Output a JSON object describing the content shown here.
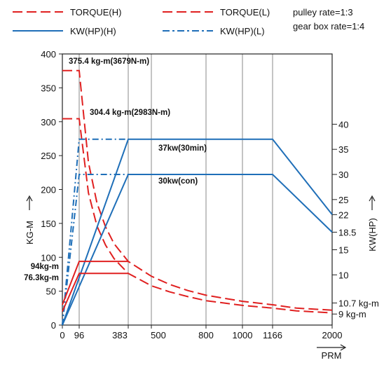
{
  "chart_data": {
    "type": "line",
    "legend": [
      {
        "label": "TORQUE(H)",
        "color": "#e02020",
        "dash": "dashed"
      },
      {
        "label": "TORQUE(L)",
        "color": "#e02020",
        "dash": "dashed"
      },
      {
        "label": "KW(HP)(H)",
        "color": "#1f6fb8",
        "dash": "solid"
      },
      {
        "label": "KW(HP)(L)",
        "color": "#1f6fb8",
        "dash": "dashdot"
      }
    ],
    "notes": [
      "pulley rate=1:3",
      "gear box rate=1:4"
    ],
    "xlabel": "PRM",
    "ylabel_left": "KG-M",
    "ylabel_right": "KW(HP)",
    "x_ticks": [
      "0",
      "96",
      "383",
      "500",
      "800",
      "1000",
      "1166",
      "2000"
    ],
    "x_tick_values": [
      0,
      96,
      383,
      500,
      800,
      1000,
      1166,
      2000
    ],
    "y_left_ticks": [
      0,
      50,
      100,
      150,
      200,
      250,
      300,
      350,
      400
    ],
    "y_left_range": [
      0,
      400
    ],
    "y_right_ticks": [
      {
        "label": "40",
        "v": 40
      },
      {
        "label": "35",
        "v": 35
      },
      {
        "label": "30",
        "v": 30
      },
      {
        "label": "25",
        "v": 25
      },
      {
        "label": "22",
        "v": 22
      },
      {
        "label": "18.5",
        "v": 18.5
      },
      {
        "label": "15",
        "v": 15
      },
      {
        "label": "10",
        "v": 10
      },
      {
        "label": "10.7 kg-m",
        "v": 4.4
      },
      {
        "label": "9 kg-m",
        "v": 2.2
      }
    ],
    "y_right_range": [
      0,
      54
    ],
    "series": [
      {
        "name": "TORQUE(H)",
        "axis": "left",
        "points": [
          [
            0,
            375.4
          ],
          [
            96,
            375.4
          ],
          [
            150,
            240
          ],
          [
            200,
            180
          ],
          [
            250,
            145
          ],
          [
            300,
            120
          ],
          [
            383,
            94
          ],
          [
            500,
            72
          ],
          [
            600,
            60
          ],
          [
            700,
            51
          ],
          [
            800,
            44
          ],
          [
            1000,
            35
          ],
          [
            1166,
            30
          ],
          [
            1500,
            25
          ],
          [
            2000,
            22
          ]
        ]
      },
      {
        "name": "TORQUE(L)",
        "axis": "left",
        "points": [
          [
            0,
            304.4
          ],
          [
            96,
            304.4
          ],
          [
            150,
            195
          ],
          [
            200,
            146
          ],
          [
            250,
            118
          ],
          [
            300,
            98
          ],
          [
            383,
            76.3
          ],
          [
            500,
            58
          ],
          [
            600,
            49
          ],
          [
            700,
            42
          ],
          [
            800,
            36
          ],
          [
            1000,
            29
          ],
          [
            1166,
            25
          ],
          [
            1500,
            21
          ],
          [
            2000,
            18
          ]
        ]
      },
      {
        "name": "KW(HP)(H)",
        "axis": "right",
        "points": [
          [
            0,
            0
          ],
          [
            383,
            37
          ],
          [
            1166,
            37
          ],
          [
            2000,
            22
          ]
        ]
      },
      {
        "name": "KW(HP)(L)",
        "axis": "right",
        "points": [
          [
            0,
            0
          ],
          [
            383,
            30
          ],
          [
            1166,
            30
          ],
          [
            2000,
            18.5
          ]
        ]
      },
      {
        "name": "KW(HP)(H) low gear",
        "axis": "right",
        "points": [
          [
            0,
            0
          ],
          [
            96,
            37
          ],
          [
            383,
            37
          ]
        ]
      },
      {
        "name": "KW(HP)(L) low gear",
        "axis": "right",
        "points": [
          [
            0,
            0
          ],
          [
            96,
            30
          ],
          [
            383,
            30
          ]
        ]
      },
      {
        "name": "TORQUE(H) low gear",
        "axis": "left",
        "points": [
          [
            0,
            30
          ],
          [
            96,
            94
          ],
          [
            383,
            94
          ]
        ]
      },
      {
        "name": "TORQUE(L) low gear",
        "axis": "left",
        "points": [
          [
            0,
            20
          ],
          [
            96,
            76.3
          ],
          [
            383,
            76.3
          ]
        ]
      }
    ],
    "annotations": [
      {
        "text": "375.4 kg-m(3679N-m)",
        "x": 96,
        "y": 375.4
      },
      {
        "text": "304.4 kg-m(2983N-m)",
        "x": 96,
        "y": 304.4
      },
      {
        "text": "37kw(30min)",
        "x": 383,
        "y": 37
      },
      {
        "text": "30kw(con)",
        "x": 383,
        "y": 30
      },
      {
        "text": "94kg-m",
        "x": 0,
        "y": 94
      },
      {
        "text": "76.3kg-m",
        "x": 0,
        "y": 76.3
      }
    ],
    "grid_x": [
      96,
      383,
      500,
      800,
      1000,
      1166,
      2000
    ],
    "grid": "vertical"
  }
}
